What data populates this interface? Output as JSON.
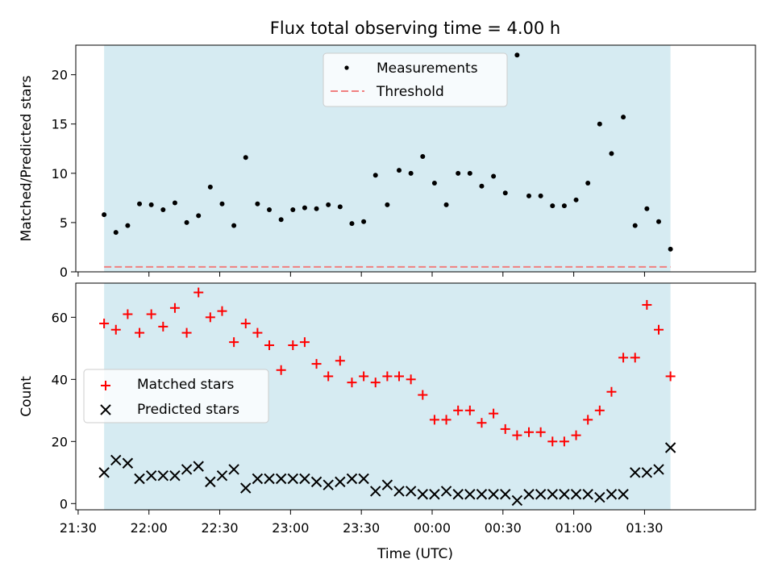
{
  "chart_data": {
    "title": "Flux total observing time = 4.00 h",
    "xlabel": "Time (UTC)",
    "x_ticks": [
      "21:30",
      "22:00",
      "22:30",
      "23:00",
      "23:30",
      "00:00",
      "00:30",
      "01:00",
      "01:30"
    ],
    "observing_window": {
      "start": "21:41",
      "end": "01:41",
      "color": "#add8e6"
    },
    "times": [
      "21:41",
      "21:46",
      "21:51",
      "21:56",
      "22:01",
      "22:06",
      "22:11",
      "22:16",
      "22:21",
      "22:26",
      "22:31",
      "22:36",
      "22:41",
      "22:46",
      "22:51",
      "22:56",
      "23:01",
      "23:06",
      "23:11",
      "23:16",
      "23:21",
      "23:26",
      "23:31",
      "23:36",
      "23:41",
      "23:46",
      "23:51",
      "23:56",
      "00:01",
      "00:06",
      "00:11",
      "00:16",
      "00:21",
      "00:26",
      "00:31",
      "00:36",
      "00:41",
      "00:46",
      "00:51",
      "00:56",
      "01:01",
      "01:06",
      "01:11",
      "01:16",
      "01:21",
      "01:26",
      "01:31",
      "01:36",
      "01:41"
    ],
    "panels": [
      {
        "type": "scatter",
        "ylabel": "Matched/Predicted stars",
        "ylim": [
          0,
          23
        ],
        "y_ticks": [
          0,
          5,
          10,
          15,
          20
        ],
        "legend": {
          "position": "upper center",
          "entries": [
            "Measurements",
            "Threshold"
          ]
        },
        "series": [
          {
            "name": "Measurements",
            "marker": "dot",
            "color": "#000000",
            "values": [
              5.8,
              4.0,
              4.7,
              6.9,
              6.8,
              6.3,
              7.0,
              5.0,
              5.7,
              8.6,
              6.9,
              4.7,
              11.6,
              6.9,
              6.3,
              5.3,
              6.3,
              6.5,
              6.4,
              6.8,
              6.6,
              4.9,
              5.1,
              9.8,
              6.8,
              10.3,
              10.0,
              11.7,
              9.0,
              6.8,
              10.0,
              10.0,
              8.7,
              9.7,
              8.0,
              22.0,
              7.7,
              7.7,
              6.7,
              6.7,
              7.3,
              9.0,
              15.0,
              12.0,
              15.7,
              4.7,
              6.4,
              5.1,
              2.3
            ]
          },
          {
            "name": "Threshold",
            "line": "dashed",
            "color": "#f08080",
            "value": 0.5
          }
        ]
      },
      {
        "type": "scatter",
        "ylabel": "Count",
        "ylim": [
          -2,
          71
        ],
        "y_ticks": [
          0,
          20,
          40,
          60
        ],
        "legend": {
          "position": "center left",
          "entries": [
            "Matched stars",
            "Predicted stars"
          ]
        },
        "series": [
          {
            "name": "Matched stars",
            "marker": "plus",
            "color": "#ff0000",
            "values": [
              58,
              56,
              61,
              55,
              61,
              57,
              63,
              55,
              68,
              60,
              62,
              52,
              58,
              55,
              51,
              43,
              51,
              52,
              45,
              41,
              46,
              39,
              41,
              39,
              41,
              41,
              40,
              35,
              27,
              27,
              30,
              30,
              26,
              29,
              24,
              22,
              23,
              23,
              20,
              20,
              22,
              27,
              30,
              36,
              47,
              47,
              64,
              56,
              41
            ]
          },
          {
            "name": "Predicted stars",
            "marker": "x",
            "color": "#000000",
            "values": [
              10,
              14,
              13,
              8,
              9,
              9,
              9,
              11,
              12,
              7,
              9,
              11,
              5,
              8,
              8,
              8,
              8,
              8,
              7,
              6,
              7,
              8,
              8,
              4,
              6,
              4,
              4,
              3,
              3,
              4,
              3,
              3,
              3,
              3,
              3,
              1,
              3,
              3,
              3,
              3,
              3,
              3,
              2,
              3,
              3,
              10,
              10,
              11,
              18
            ]
          }
        ]
      }
    ]
  }
}
